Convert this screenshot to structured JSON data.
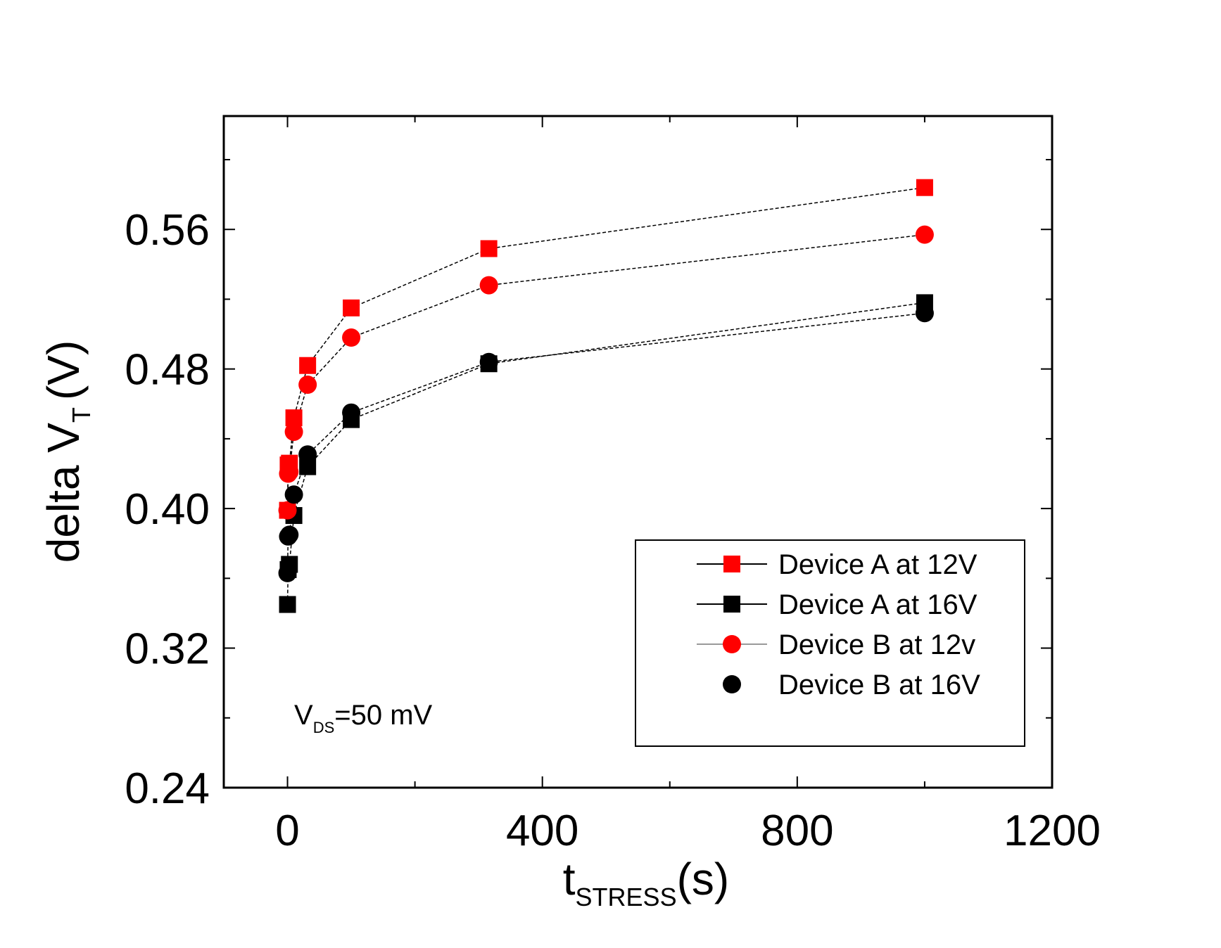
{
  "chart_data": {
    "type": "scatter",
    "title": "",
    "xlabel": {
      "main": "t",
      "sub": "STRESS",
      "unit": "(s)"
    },
    "ylabel": {
      "main": "delta V",
      "sub": "T",
      "unit": "(V)"
    },
    "xlim": [
      -100,
      1200
    ],
    "ylim": [
      0.24,
      0.625
    ],
    "xticks": [
      0,
      400,
      800,
      1200
    ],
    "xtick_labels": [
      "0",
      "400",
      "800",
      "1200"
    ],
    "yticks": [
      0.24,
      0.32,
      0.4,
      0.48,
      0.56
    ],
    "ytick_labels": [
      "0.24",
      "0.32",
      "0.40",
      "0.48",
      "0.56"
    ],
    "grid": false,
    "legend_position": "bottom-right",
    "annotation": {
      "main": "V",
      "sub": "DS",
      "rest": "=50 mV"
    },
    "series": [
      {
        "name": "Device A at 12V",
        "marker": "square",
        "color": "#ff0000",
        "x": [
          0,
          1,
          3,
          10,
          31.6,
          100,
          316,
          1000
        ],
        "y": [
          0.399,
          0.425,
          0.426,
          0.452,
          0.482,
          0.515,
          0.549,
          0.584
        ]
      },
      {
        "name": "Device A at  16V",
        "marker": "square",
        "color": "#000000",
        "x": [
          0,
          1,
          3,
          10,
          31.6,
          100,
          316,
          1000
        ],
        "y": [
          0.345,
          0.365,
          0.368,
          0.396,
          0.424,
          0.451,
          0.483,
          0.518
        ]
      },
      {
        "name": "Device B at  12v",
        "marker": "circle",
        "color": "#ff0000",
        "x": [
          0,
          1,
          3,
          10,
          31.6,
          100,
          316,
          1000
        ],
        "y": [
          0.399,
          0.42,
          0.421,
          0.444,
          0.471,
          0.498,
          0.528,
          0.557
        ]
      },
      {
        "name": "Device B at  16V",
        "marker": "circle",
        "color": "#000000",
        "x": [
          0,
          1,
          3,
          10,
          31.6,
          100,
          316,
          1000
        ],
        "y": [
          0.363,
          0.384,
          0.385,
          0.408,
          0.431,
          0.455,
          0.484,
          0.512
        ]
      }
    ]
  }
}
